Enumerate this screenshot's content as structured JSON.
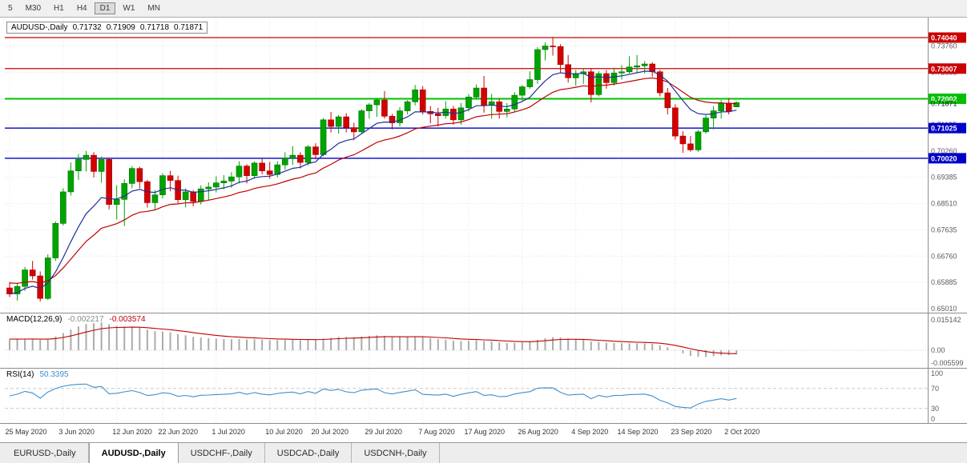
{
  "toolbar": {
    "timeframes": [
      {
        "label": "5",
        "active": false
      },
      {
        "label": "M30",
        "active": false
      },
      {
        "label": "H1",
        "active": false
      },
      {
        "label": "H4",
        "active": false
      },
      {
        "label": "D1",
        "active": true
      },
      {
        "label": "W1",
        "active": false
      },
      {
        "label": "MN",
        "active": false
      }
    ]
  },
  "title": {
    "symbol": "AUDUSD-,Daily",
    "open": "0.71732",
    "high": "0.71909",
    "low": "0.71718",
    "close": "0.71871"
  },
  "price_axis": {
    "gridline_values": [
      0.7376,
      0.72885,
      0.7201,
      0.71135,
      0.7026,
      0.69385,
      0.6851,
      0.67635,
      0.6676,
      0.65885,
      0.6501
    ],
    "current_price_label": "0.71871"
  },
  "levels": [
    {
      "value": 0.7404,
      "label": "0.74040",
      "color": "#cc0000",
      "width": 1.2
    },
    {
      "value": 0.73007,
      "label": "0.73007",
      "color": "#cc0000",
      "width": 1.2
    },
    {
      "value": 0.72002,
      "label": "0.72002",
      "color": "#00c000",
      "width": 2
    },
    {
      "value": 0.71025,
      "label": "0.71025",
      "color": "#0000c8",
      "width": 1.4
    },
    {
      "value": 0.7002,
      "label": "0.70020",
      "color": "#0000c8",
      "width": 1.4
    }
  ],
  "chart_data": {
    "type": "candlestick",
    "symbol": "AUDUSD-",
    "timeframe": "Daily",
    "ylim": [
      0.6493,
      0.7471
    ],
    "last_bar": {
      "open": 0.71732,
      "high": 0.71909,
      "low": 0.71718,
      "close": 0.71871
    },
    "date_ticks": [
      {
        "label": "25 May 2020",
        "bar": 0
      },
      {
        "label": "3 Jun 2020",
        "bar": 7
      },
      {
        "label": "12 Jun 2020",
        "bar": 14
      },
      {
        "label": "22 Jun 2020",
        "bar": 20
      },
      {
        "label": "1 Jul 2020",
        "bar": 27
      },
      {
        "label": "10 Jul 2020",
        "bar": 34
      },
      {
        "label": "20 Jul 2020",
        "bar": 40
      },
      {
        "label": "29 Jul 2020",
        "bar": 47
      },
      {
        "label": "7 Aug 2020",
        "bar": 54
      },
      {
        "label": "17 Aug 2020",
        "bar": 60
      },
      {
        "label": "26 Aug 2020",
        "bar": 67
      },
      {
        "label": "4 Sep 2020",
        "bar": 74
      },
      {
        "label": "14 Sep 2020",
        "bar": 80
      },
      {
        "label": "23 Sep 2020",
        "bar": 87
      },
      {
        "label": "2 Oct 2020",
        "bar": 94
      }
    ],
    "overlays": {
      "ma_fast": {
        "period": 10,
        "color": "#223099"
      },
      "ma_slow": {
        "period": 21,
        "color": "#c00000"
      }
    },
    "ohlc_format": "[open, high, low, close]",
    "candles": [
      [
        0.657,
        0.659,
        0.654,
        0.655
      ],
      [
        0.655,
        0.6585,
        0.6528,
        0.6575
      ],
      [
        0.6575,
        0.664,
        0.656,
        0.663
      ],
      [
        0.663,
        0.666,
        0.6598,
        0.661
      ],
      [
        0.661,
        0.6625,
        0.6525,
        0.6535
      ],
      [
        0.6535,
        0.6682,
        0.653,
        0.667
      ],
      [
        0.667,
        0.6792,
        0.666,
        0.6785
      ],
      [
        0.6785,
        0.6902,
        0.6778,
        0.689
      ],
      [
        0.689,
        0.6988,
        0.6878,
        0.696
      ],
      [
        0.696,
        0.7016,
        0.693,
        0.6998
      ],
      [
        0.6998,
        0.7026,
        0.6958,
        0.7012
      ],
      [
        0.7012,
        0.7022,
        0.6938,
        0.6958
      ],
      [
        0.6958,
        0.7008,
        0.692,
        0.6998
      ],
      [
        0.6998,
        0.7004,
        0.6832,
        0.6848
      ],
      [
        0.6848,
        0.6912,
        0.6798,
        0.6865
      ],
      [
        0.6865,
        0.6932,
        0.6776,
        0.6918
      ],
      [
        0.6918,
        0.6976,
        0.6902,
        0.6968
      ],
      [
        0.6968,
        0.6974,
        0.6902,
        0.6924
      ],
      [
        0.6924,
        0.693,
        0.6838,
        0.6854
      ],
      [
        0.6854,
        0.6896,
        0.6832,
        0.688
      ],
      [
        0.688,
        0.6952,
        0.6868,
        0.6944
      ],
      [
        0.6944,
        0.696,
        0.6892,
        0.6928
      ],
      [
        0.6928,
        0.6944,
        0.6852,
        0.6864
      ],
      [
        0.6864,
        0.6902,
        0.6838,
        0.689
      ],
      [
        0.689,
        0.6896,
        0.6842,
        0.6858
      ],
      [
        0.6858,
        0.6912,
        0.6848,
        0.69
      ],
      [
        0.69,
        0.6922,
        0.6862,
        0.6906
      ],
      [
        0.6906,
        0.6942,
        0.6888,
        0.692
      ],
      [
        0.692,
        0.6946,
        0.6898,
        0.6926
      ],
      [
        0.6926,
        0.6956,
        0.6904,
        0.694
      ],
      [
        0.694,
        0.6992,
        0.6918,
        0.6976
      ],
      [
        0.6976,
        0.6982,
        0.6918,
        0.6944
      ],
      [
        0.6944,
        0.6992,
        0.6934,
        0.6986
      ],
      [
        0.6986,
        0.7002,
        0.6948,
        0.696
      ],
      [
        0.696,
        0.699,
        0.6934,
        0.6948
      ],
      [
        0.6948,
        0.6992,
        0.6938,
        0.698
      ],
      [
        0.698,
        0.7022,
        0.6964,
        0.7002
      ],
      [
        0.7002,
        0.7042,
        0.698,
        0.7012
      ],
      [
        0.7012,
        0.7022,
        0.6968,
        0.6988
      ],
      [
        0.6988,
        0.7046,
        0.6978,
        0.704
      ],
      [
        0.704,
        0.7052,
        0.6998,
        0.7014
      ],
      [
        0.7014,
        0.7136,
        0.7008,
        0.713
      ],
      [
        0.713,
        0.7156,
        0.7088,
        0.7108
      ],
      [
        0.7108,
        0.7146,
        0.7084,
        0.714
      ],
      [
        0.714,
        0.7152,
        0.7088,
        0.7104
      ],
      [
        0.7104,
        0.712,
        0.7062,
        0.709
      ],
      [
        0.709,
        0.7166,
        0.7084,
        0.716
      ],
      [
        0.716,
        0.7186,
        0.7134,
        0.718
      ],
      [
        0.718,
        0.7202,
        0.714,
        0.7196
      ],
      [
        0.7196,
        0.7226,
        0.7134,
        0.7142
      ],
      [
        0.7142,
        0.715,
        0.7098,
        0.712
      ],
      [
        0.712,
        0.7172,
        0.7108,
        0.716
      ],
      [
        0.716,
        0.7196,
        0.7148,
        0.719
      ],
      [
        0.719,
        0.7246,
        0.7178,
        0.723
      ],
      [
        0.723,
        0.7242,
        0.7148,
        0.7158
      ],
      [
        0.7158,
        0.7176,
        0.7118,
        0.715
      ],
      [
        0.715,
        0.717,
        0.7108,
        0.7144
      ],
      [
        0.7144,
        0.7192,
        0.7134,
        0.7166
      ],
      [
        0.7166,
        0.7176,
        0.7114,
        0.713
      ],
      [
        0.713,
        0.7186,
        0.7114,
        0.717
      ],
      [
        0.717,
        0.7216,
        0.7158,
        0.7206
      ],
      [
        0.7206,
        0.7248,
        0.7198,
        0.7236
      ],
      [
        0.7236,
        0.7276,
        0.7154,
        0.7178
      ],
      [
        0.7178,
        0.7216,
        0.7134,
        0.719
      ],
      [
        0.719,
        0.72,
        0.7134,
        0.7158
      ],
      [
        0.7158,
        0.7186,
        0.7138,
        0.7166
      ],
      [
        0.7166,
        0.7222,
        0.7156,
        0.7212
      ],
      [
        0.7212,
        0.7246,
        0.7194,
        0.724
      ],
      [
        0.724,
        0.7292,
        0.7234,
        0.7264
      ],
      [
        0.7264,
        0.7372,
        0.725,
        0.7364
      ],
      [
        0.7364,
        0.7388,
        0.7328,
        0.7376
      ],
      [
        0.7376,
        0.7405,
        0.7344,
        0.7374
      ],
      [
        0.7374,
        0.7382,
        0.7288,
        0.7314
      ],
      [
        0.7314,
        0.7346,
        0.7254,
        0.727
      ],
      [
        0.727,
        0.7296,
        0.7244,
        0.7284
      ],
      [
        0.7284,
        0.7302,
        0.725,
        0.729
      ],
      [
        0.729,
        0.73,
        0.7188,
        0.7214
      ],
      [
        0.7214,
        0.7292,
        0.7208,
        0.7284
      ],
      [
        0.7284,
        0.7296,
        0.7234,
        0.7254
      ],
      [
        0.7254,
        0.7302,
        0.7244,
        0.7286
      ],
      [
        0.7286,
        0.7312,
        0.7264,
        0.729
      ],
      [
        0.729,
        0.7342,
        0.7284,
        0.7306
      ],
      [
        0.7306,
        0.7346,
        0.7288,
        0.731
      ],
      [
        0.731,
        0.7326,
        0.7284,
        0.7316
      ],
      [
        0.7316,
        0.7322,
        0.7274,
        0.729
      ],
      [
        0.729,
        0.7296,
        0.7208,
        0.722
      ],
      [
        0.722,
        0.7236,
        0.7148,
        0.717
      ],
      [
        0.717,
        0.7182,
        0.7064,
        0.7076
      ],
      [
        0.7076,
        0.7092,
        0.702,
        0.705
      ],
      [
        0.705,
        0.7076,
        0.7024,
        0.703
      ],
      [
        0.703,
        0.7096,
        0.7024,
        0.709
      ],
      [
        0.709,
        0.7146,
        0.7084,
        0.7136
      ],
      [
        0.7136,
        0.7176,
        0.7098,
        0.716
      ],
      [
        0.716,
        0.7196,
        0.7134,
        0.7186
      ],
      [
        0.7186,
        0.7202,
        0.7148,
        0.7158
      ],
      [
        0.71732,
        0.71909,
        0.71718,
        0.71871
      ]
    ]
  },
  "macd": {
    "label": "MACD(12,26,9)",
    "fast": 12,
    "slow": 26,
    "signal": 9,
    "value_main": "-0.002217",
    "value_signal": "-0.003574",
    "axis": {
      "max": "0.015142",
      "zero": "0.00",
      "min": "-0.005599"
    },
    "hist_color": "#ababab",
    "signal_color": "#c00000"
  },
  "rsi": {
    "label": "RSI(14)",
    "period": 14,
    "value": "50.3395",
    "axis": [
      "100",
      "70",
      "30",
      "0"
    ],
    "upper": 70,
    "lower": 30,
    "color": "#3e8fce"
  },
  "tabs": [
    {
      "label": "EURUSD-,Daily",
      "active": false
    },
    {
      "label": "AUDUSD-,Daily",
      "active": true
    },
    {
      "label": "USDCHF-,Daily",
      "active": false
    },
    {
      "label": "USDCAD-,Daily",
      "active": false
    },
    {
      "label": "USDCNH-,Daily",
      "active": false
    }
  ]
}
